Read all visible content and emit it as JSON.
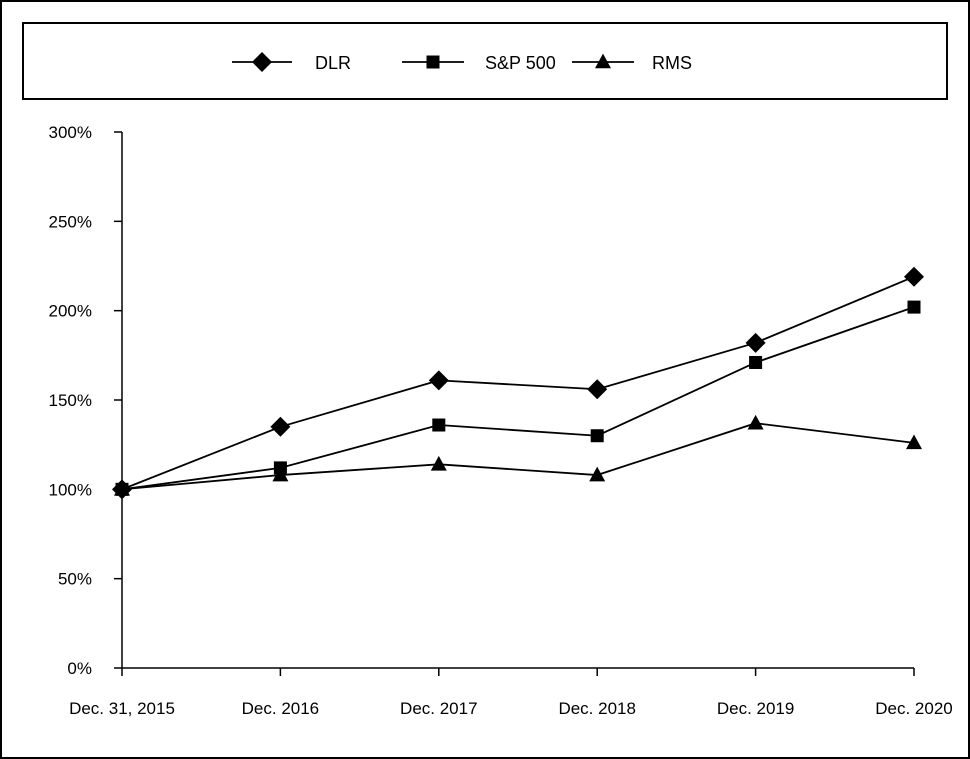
{
  "chart_data": {
    "type": "line",
    "title": "",
    "xlabel": "",
    "ylabel": "",
    "categories": [
      "Dec. 31, 2015",
      "Dec. 2016",
      "Dec. 2017",
      "Dec. 2018",
      "Dec. 2019",
      "Dec. 2020"
    ],
    "y_ticks": [
      0,
      50,
      100,
      150,
      200,
      250,
      300
    ],
    "y_tick_labels": [
      "0%",
      "50%",
      "100%",
      "150%",
      "200%",
      "250%",
      "300%"
    ],
    "ylim": [
      0,
      300
    ],
    "grid": false,
    "legend_position": "top",
    "series": [
      {
        "name": "DLR",
        "marker": "diamond",
        "values": [
          100,
          135,
          161,
          156,
          182,
          219
        ]
      },
      {
        "name": "S&P 500",
        "marker": "square",
        "values": [
          100,
          112,
          136,
          130,
          171,
          202
        ]
      },
      {
        "name": "RMS",
        "marker": "triangle",
        "values": [
          100,
          108,
          114,
          108,
          137,
          126
        ]
      }
    ],
    "colors": {
      "line": "#000000",
      "marker": "#000000"
    }
  }
}
